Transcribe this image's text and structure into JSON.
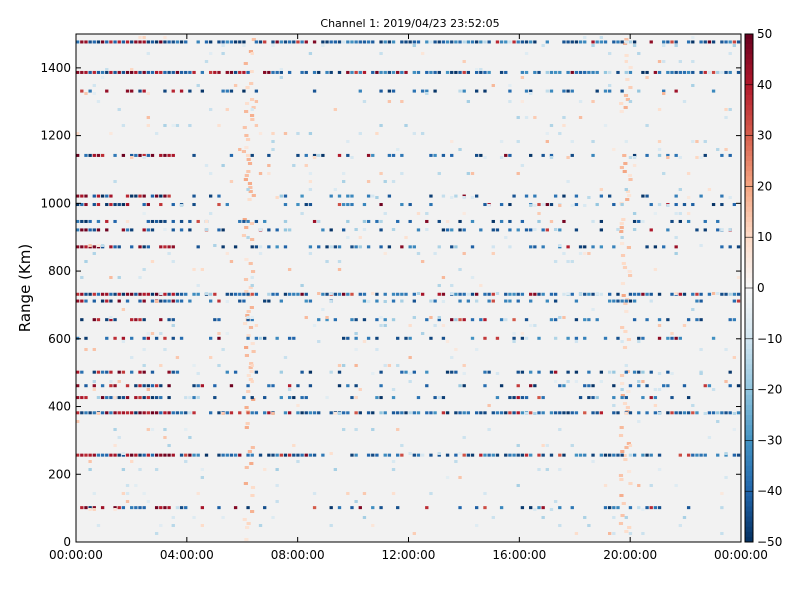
{
  "chart_data": {
    "type": "heatmap",
    "title": "Channel 1: 2019/04/23 23:52:05",
    "xlabel": "",
    "ylabel": "Range (Km)",
    "xlim": [
      "00:00:00",
      "00:00:00"
    ],
    "ylim": [
      0,
      1500
    ],
    "grid": false,
    "x_ticks": [
      "00:00:00",
      "04:00:00",
      "08:00:00",
      "12:00:00",
      "16:00:00",
      "20:00:00",
      "00:00:00"
    ],
    "y_ticks": [
      0,
      200,
      400,
      600,
      800,
      1000,
      1200,
      1400
    ],
    "colorbar": {
      "colormap": "RdBu_r",
      "range": [
        -50,
        50
      ],
      "ticks": [
        "50",
        "40",
        "30",
        "20",
        "10",
        "0",
        "−10",
        "−20",
        "−30",
        "−40",
        "−50"
      ],
      "colors": [
        "#053061",
        "#2166ac",
        "#4393c3",
        "#92c5de",
        "#d1e5f0",
        "#f7f7f7",
        "#fddbc7",
        "#f4a582",
        "#d6604d",
        "#b2182b",
        "#67001f"
      ]
    },
    "dominant_value": 0,
    "strong_range_bands_km": [
      1475,
      1385,
      1330,
      1140,
      1020,
      995,
      945,
      920,
      870,
      730,
      710,
      655,
      600,
      500,
      460,
      425,
      380,
      255,
      100
    ],
    "vertical_bands_hours": [
      6.2,
      19.8
    ]
  }
}
